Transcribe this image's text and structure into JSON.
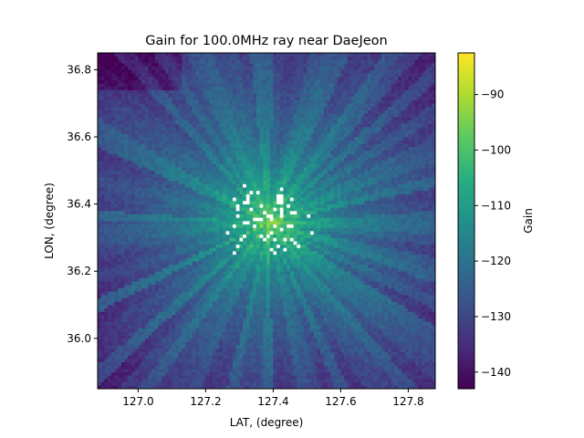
{
  "chart_data": {
    "type": "heatmap",
    "title": "Gain for 100.0MHz ray near DaeJeon",
    "xlabel": "LAT, (degree)",
    "ylabel": "LON, (degree)",
    "xlim": [
      126.88,
      127.88
    ],
    "ylim": [
      35.85,
      36.85
    ],
    "x_ticks": [
      127.0,
      127.2,
      127.4,
      127.6,
      127.8
    ],
    "x_tick_labels": [
      "127.0",
      "127.2",
      "127.4",
      "127.6",
      "127.8"
    ],
    "y_ticks": [
      36.0,
      36.2,
      36.4,
      36.6,
      36.8
    ],
    "y_tick_labels": [
      "36.0",
      "36.2",
      "36.4",
      "36.6",
      "36.8"
    ],
    "colormap": "viridis",
    "missing_color": "#ffffff",
    "grid": false,
    "grid_size": [
      100,
      100
    ],
    "center": {
      "x": 127.385,
      "y": 36.345
    },
    "value_range": [
      -143,
      -82.5
    ],
    "colorbar": {
      "label": "Gain",
      "ticks": [
        -90,
        -100,
        -110,
        -120,
        -130,
        -140
      ],
      "tick_labels": [
        "−90",
        "−100",
        "−110",
        "−120",
        "−130",
        "−140"
      ]
    },
    "value_profile": {
      "description_points_distance_deg": [
        0.0,
        0.03,
        0.06,
        0.1,
        0.15,
        0.25,
        0.4,
        0.6,
        0.75
      ],
      "gain_dB": [
        -95,
        -100,
        -104,
        -108,
        -113,
        -120,
        -126,
        -132,
        -136
      ]
    }
  }
}
